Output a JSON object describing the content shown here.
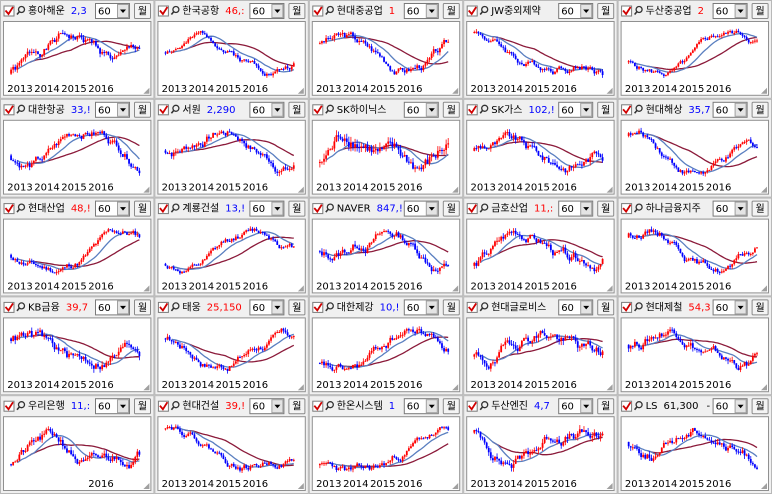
{
  "panels": [
    {
      "name": "홍아해운",
      "price": "2,3",
      "price_color": "#0000ff",
      "period": "60",
      "unit": "월",
      "years": [
        "2013",
        "2014",
        "2015",
        "2016"
      ]
    },
    {
      "name": "한국공항",
      "price": "46,:",
      "price_color": "#ff0000",
      "period": "60",
      "unit": "월",
      "years": [
        "2013",
        "2014",
        "2015",
        "2016"
      ]
    },
    {
      "name": "현대중공업",
      "price": "1",
      "price_color": "#ff0000",
      "period": "60",
      "unit": "월",
      "years": [
        "2013",
        "2014",
        "2015",
        "2016"
      ]
    },
    {
      "name": "JW중외제약",
      "period": "60",
      "unit": "월",
      "years": [
        "2013",
        "2014",
        "2015",
        "2016"
      ]
    },
    {
      "name": "두산중공업",
      "price": "2",
      "price_color": "#ff0000",
      "period": "60",
      "unit": "월",
      "years": [
        "2013",
        "2014",
        "2015",
        "2016"
      ]
    },
    {
      "name": "대한항공",
      "price": "33,!",
      "price_color": "#0000ff",
      "period": "60",
      "unit": "월",
      "years": [
        "2013",
        "2014",
        "2015",
        "2016"
      ]
    },
    {
      "name": "서원",
      "price": "2,290",
      "price_color": "#0000ff",
      "period": "60",
      "unit": "월",
      "years": [
        "2013",
        "2014",
        "2015",
        "2016"
      ]
    },
    {
      "name": "SK하이닉스",
      "period": "60",
      "unit": "월",
      "years": [
        "2013",
        "2014",
        "2015",
        "2016"
      ]
    },
    {
      "name": "SK가스",
      "price": "102,!",
      "price_color": "#0000ff",
      "period": "60",
      "unit": "월",
      "years": [
        "2013",
        "2014",
        "2015",
        "2016"
      ]
    },
    {
      "name": "현대해상",
      "price": "35,7",
      "price_color": "#0000ff",
      "period": "60",
      "unit": "월",
      "years": [
        "2013",
        "2014",
        "2015",
        "2016"
      ]
    },
    {
      "name": "현대산업",
      "price": "48,!",
      "price_color": "#ff0000",
      "period": "60",
      "unit": "월",
      "years": [
        "2013",
        "2014",
        "2015",
        "2016"
      ]
    },
    {
      "name": "계룡건설",
      "price": "13,!",
      "price_color": "#0000ff",
      "period": "60",
      "unit": "월",
      "years": [
        "2013",
        "2014",
        "2015",
        "2016"
      ]
    },
    {
      "name": "NAVER",
      "price": "847,!",
      "price_color": "#0000ff",
      "period": "60",
      "unit": "월",
      "years": [
        "2013",
        "2014",
        "2015",
        "2016"
      ]
    },
    {
      "name": "금호산업",
      "price": "11,:",
      "price_color": "#ff0000",
      "period": "60",
      "unit": "월",
      "years": [
        "2013",
        "2014",
        "2015",
        "2016"
      ]
    },
    {
      "name": "하나금융지주",
      "period": "60",
      "unit": "월",
      "years": [
        "2013",
        "2014",
        "2015",
        "2016"
      ]
    },
    {
      "name": "KB금융",
      "price": "39,7",
      "price_color": "#ff0000",
      "period": "60",
      "unit": "월",
      "years": [
        "2013",
        "2014",
        "2015",
        "2016"
      ]
    },
    {
      "name": "태웅",
      "price": "25,150",
      "price_color": "#ff0000",
      "period": "60",
      "unit": "월",
      "years": [
        "2013",
        "2014",
        "2015",
        "2016"
      ]
    },
    {
      "name": "대한제강",
      "price": "10,!",
      "price_color": "#0000ff",
      "period": "60",
      "unit": "월",
      "years": [
        "2013",
        "2014",
        "2015",
        "2016"
      ]
    },
    {
      "name": "현대글로비스",
      "period": "60",
      "unit": "월",
      "years": [
        "2013",
        "2014",
        "2015",
        "2016"
      ]
    },
    {
      "name": "현대제철",
      "price": "54,3",
      "price_color": "#ff0000",
      "period": "60",
      "unit": "월",
      "years": [
        "2013",
        "2014",
        "2015",
        "2016"
      ]
    },
    {
      "name": "우리은행",
      "price": "11,:",
      "price_color": "#0000ff",
      "period": "60",
      "unit": "월",
      "years": [
        "2016"
      ]
    },
    {
      "name": "현대건설",
      "price": "39,!",
      "price_color": "#ff0000",
      "period": "60",
      "unit": "월",
      "years": [
        "2013",
        "2014",
        "2015",
        "2016"
      ]
    },
    {
      "name": "한온시스템",
      "price": "1",
      "price_color": "#0000ff",
      "period": "60",
      "unit": "월",
      "years": [
        "2013",
        "2014",
        "2015",
        "2016"
      ]
    },
    {
      "name": "두산엔진",
      "price": "4,7",
      "price_color": "#0000ff",
      "period": "60",
      "unit": "월",
      "years": [
        "2013",
        "2014",
        "2015",
        "2016"
      ]
    },
    {
      "name": "LS",
      "price": "61,300",
      "price_color": "#000000",
      "change": "-",
      "period": "60",
      "unit": "월",
      "years": [
        "2013",
        "2014",
        "2015",
        "2016"
      ]
    }
  ]
}
